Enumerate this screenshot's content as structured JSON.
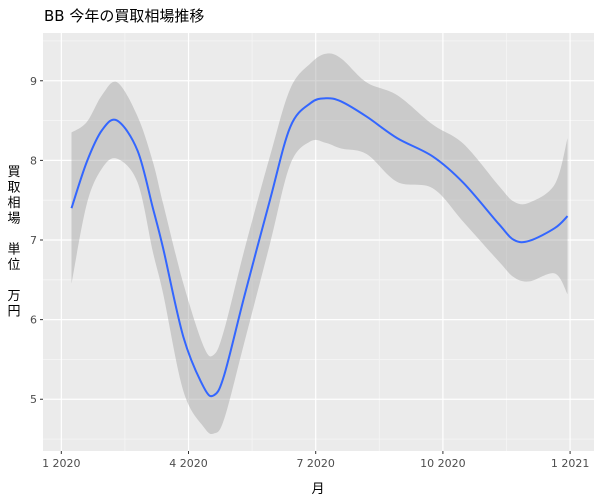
{
  "chart_data": {
    "type": "line",
    "title": "BB 今年の買取相場推移",
    "xlabel": "月",
    "ylabel_lines": [
      "買",
      "取",
      "相",
      "場",
      "",
      "単",
      "位",
      "",
      "万",
      "円"
    ],
    "x_tick_labels": [
      "1 2020",
      "4 2020",
      "7 2020",
      "10 2020",
      "1 2021"
    ],
    "x_tick_positions": [
      2020.0,
      2020.25,
      2020.5,
      2020.75,
      2021.0
    ],
    "y_ticks": [
      5,
      6,
      7,
      8,
      9
    ],
    "xlim": [
      2019.964,
      2021.047
    ],
    "ylim": [
      4.35,
      9.6
    ],
    "grid": true,
    "legend": "none",
    "colors": {
      "panel": "#ebebeb",
      "grid_major": "#ffffff",
      "grid_minor": "#f5f5f5",
      "line": "#3366ff",
      "band": "#999999",
      "axis_text": "#4d4d4d",
      "title_text": "#000000"
    },
    "series": [
      {
        "x": [
          2020.02,
          2020.05,
          2020.08,
          2020.11,
          2020.15,
          2020.18,
          2020.2,
          2020.24,
          2020.28,
          2020.3,
          2020.32,
          2020.36,
          2020.41,
          2020.45,
          2020.49,
          2020.52,
          2020.55,
          2020.6,
          2020.66,
          2020.73,
          2020.79,
          2020.86,
          2020.89,
          2020.92,
          2020.97,
          2020.995
        ],
        "y": [
          7.4,
          7.98,
          8.38,
          8.5,
          8.12,
          7.4,
          6.9,
          5.78,
          5.15,
          5.05,
          5.3,
          6.3,
          7.5,
          8.42,
          8.72,
          8.78,
          8.74,
          8.55,
          8.28,
          8.05,
          7.72,
          7.2,
          7.0,
          6.99,
          7.15,
          7.3
        ],
        "ymin": [
          6.45,
          7.45,
          7.9,
          8.02,
          7.72,
          6.85,
          6.33,
          5.1,
          4.65,
          4.57,
          4.75,
          5.72,
          6.95,
          7.95,
          8.24,
          8.22,
          8.15,
          8.08,
          7.73,
          7.65,
          7.23,
          6.73,
          6.53,
          6.48,
          6.58,
          6.32
        ],
        "ymax": [
          8.35,
          8.48,
          8.82,
          8.98,
          8.55,
          7.98,
          7.46,
          6.45,
          5.66,
          5.56,
          5.87,
          6.88,
          8.05,
          8.9,
          9.22,
          9.34,
          9.28,
          8.98,
          8.82,
          8.45,
          8.21,
          7.68,
          7.48,
          7.47,
          7.7,
          8.28
        ]
      }
    ]
  }
}
